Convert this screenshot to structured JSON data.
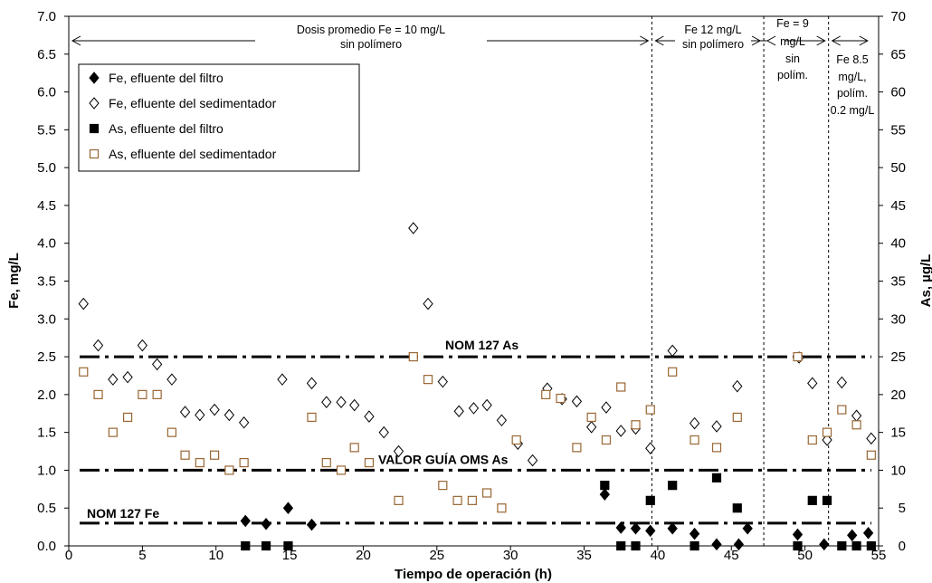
{
  "chart_data": {
    "type": "scatter",
    "xlabel": "Tiempo de operación (h)",
    "ylabel": "Fe, mg/L",
    "y2label": "As, µg/L",
    "xlim": [
      0,
      55
    ],
    "ylim": [
      0,
      7.0
    ],
    "y2lim": [
      0,
      70
    ],
    "x_ticks": [
      "0",
      "5",
      "10",
      "15",
      "20",
      "25",
      "30",
      "35",
      "40",
      "45",
      "50",
      "55"
    ],
    "y_ticks": [
      "0.0",
      "0.5",
      "1.0",
      "1.5",
      "2.0",
      "2.5",
      "3.0",
      "3.5",
      "4.0",
      "4.5",
      "5.0",
      "5.5",
      "6.0",
      "6.5",
      "7.0"
    ],
    "y2_ticks": [
      "0",
      "5",
      "10",
      "15",
      "20",
      "25",
      "30",
      "35",
      "40",
      "45",
      "50",
      "55",
      "60",
      "65",
      "70"
    ],
    "grid": false,
    "legend_position": "top-left",
    "series": [
      {
        "name": "Fe, efluente del filtro",
        "axis": "left",
        "marker": "diamond-filled",
        "color": "#000000",
        "x": [
          12,
          13.4,
          14.9,
          16.5,
          36.4,
          37.5,
          38.5,
          39.5,
          41,
          42.5,
          44,
          45.5,
          46.1,
          49.5,
          51.3,
          53.2,
          54.3
        ],
        "y": [
          0.33,
          0.29,
          0.5,
          0.28,
          0.68,
          0.24,
          0.23,
          0.2,
          0.23,
          0.16,
          0.02,
          0.02,
          0.23,
          0.15,
          0.02,
          0.14,
          0.17
        ]
      },
      {
        "name": "Fe, efluente del sedimentador",
        "axis": "left",
        "marker": "diamond-open",
        "color": "#000000",
        "x": [
          1,
          2,
          3,
          4,
          5,
          6,
          7,
          7.9,
          8.9,
          9.9,
          10.9,
          11.9,
          14.5,
          16.5,
          17.5,
          18.5,
          19.4,
          20.4,
          21.4,
          22.4,
          23.4,
          24.4,
          25.4,
          26.5,
          27.5,
          28.4,
          29.4,
          30.5,
          31.5,
          32.5,
          33.5,
          34.5,
          35.5,
          36.5,
          37.5,
          38.5,
          39.5,
          41,
          42.5,
          44,
          45.4,
          49.6,
          50.5,
          51.5,
          52.5,
          53.5,
          54.5
        ],
        "y": [
          3.2,
          2.65,
          2.2,
          2.23,
          2.65,
          2.4,
          2.2,
          1.77,
          1.73,
          1.8,
          1.73,
          1.63,
          2.2,
          2.15,
          1.9,
          1.9,
          1.86,
          1.71,
          1.5,
          1.25,
          4.2,
          3.2,
          2.17,
          1.78,
          1.82,
          1.86,
          1.66,
          1.35,
          1.13,
          2.08,
          1.94,
          1.91,
          1.57,
          1.83,
          1.52,
          1.55,
          1.29,
          2.58,
          1.62,
          1.58,
          2.11,
          2.49,
          2.15,
          1.4,
          2.16,
          1.72,
          1.42
        ]
      },
      {
        "name": "As, efluente del filtro",
        "axis": "right",
        "marker": "square-filled",
        "color": "#000000",
        "x": [
          12,
          13.4,
          14.9,
          36.4,
          37.5,
          38.5,
          39.5,
          41,
          42.5,
          44,
          45.4,
          49.5,
          50.5,
          51.5,
          52.5,
          53.5,
          54.5
        ],
        "y": [
          0,
          0,
          0,
          8,
          0,
          0,
          6,
          8,
          0,
          9,
          5,
          0,
          6,
          6,
          0,
          0,
          0
        ]
      },
      {
        "name": "As, efluente del sedimentador",
        "axis": "right",
        "marker": "square-open",
        "color": "#996633",
        "x": [
          1,
          2,
          3,
          4,
          5,
          6,
          7,
          7.9,
          8.9,
          9.9,
          10.9,
          11.9,
          16.5,
          17.5,
          18.5,
          19.4,
          20.4,
          22.4,
          23.4,
          24.4,
          25.4,
          26.4,
          27.4,
          28.4,
          29.4,
          30.4,
          32.4,
          33.4,
          34.5,
          35.5,
          36.5,
          37.5,
          38.5,
          39.5,
          41,
          42.5,
          44,
          45.4,
          49.5,
          50.5,
          51.5,
          52.5,
          53.5,
          54.5
        ],
        "y": [
          23,
          20,
          15,
          17,
          20,
          20,
          15,
          12,
          11,
          12,
          10,
          11,
          17,
          11,
          10,
          13,
          11,
          6,
          25,
          22,
          8,
          6,
          6,
          7,
          5,
          14,
          20,
          19.5,
          13,
          17,
          14,
          21,
          16,
          18,
          23,
          14,
          13,
          17,
          25,
          14,
          15,
          18,
          16,
          12
        ]
      }
    ],
    "reference_lines": [
      {
        "label": "NOM 127   As",
        "axis": "right",
        "value": 25
      },
      {
        "label": "VALOR GUÍA OMS   As",
        "axis": "right",
        "value": 10
      },
      {
        "label": "NOM 127   Fe",
        "axis": "left",
        "value": 0.3
      }
    ],
    "period_dividers_x": [
      39.6,
      47.2,
      51.6
    ],
    "annotations": [
      {
        "lines": [
          "Dosis promedio Fe = 10 mg/L",
          "sin polímero"
        ],
        "x_from": 0,
        "x_to": 39.6
      },
      {
        "lines": [
          "Fe 12 mg/L",
          "sin polímero"
        ],
        "x_from": 39.6,
        "x_to": 47.2
      },
      {
        "lines": [
          "Fe = 9",
          "mg/L",
          "sin",
          "polím."
        ],
        "x_from": 47.2,
        "x_to": 51.6
      },
      {
        "lines": [
          "Fe 8.5",
          "mg/L,",
          "polím.",
          "0.2 mg/L"
        ],
        "x_from": 51.6,
        "x_to": 54.5
      }
    ]
  }
}
